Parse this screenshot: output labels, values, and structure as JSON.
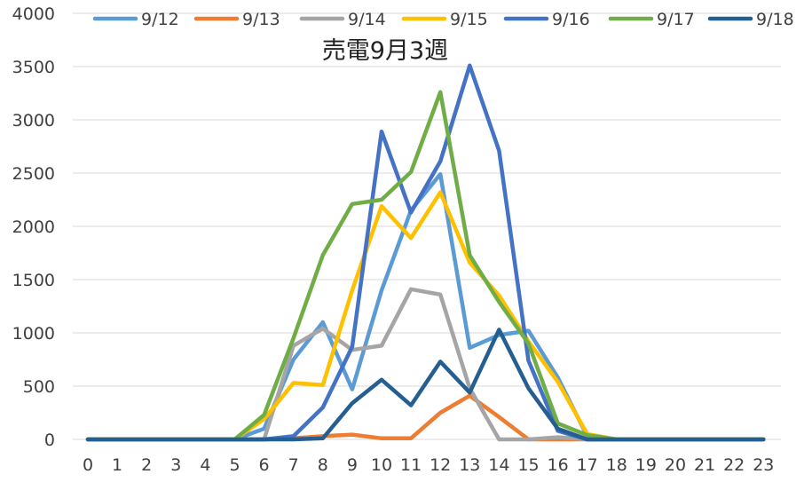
{
  "chart_data": {
    "type": "line",
    "title": "売電9月3週",
    "xlabel": "",
    "ylabel": "",
    "x": [
      0,
      1,
      2,
      3,
      4,
      5,
      6,
      7,
      8,
      9,
      10,
      11,
      12,
      13,
      14,
      15,
      16,
      17,
      18,
      19,
      20,
      21,
      22,
      23
    ],
    "x_tick_labels": [
      "0",
      "1",
      "2",
      "3",
      "4",
      "5",
      "6",
      "7",
      "8",
      "9",
      "10",
      "11",
      "12",
      "13",
      "14",
      "15",
      "16",
      "17",
      "18",
      "19",
      "20",
      "21",
      "22",
      "23"
    ],
    "ylim": [
      0,
      4000
    ],
    "y_ticks": [
      0,
      500,
      1000,
      1500,
      2000,
      2500,
      3000,
      3500,
      4000
    ],
    "y_tick_labels": [
      "0",
      "500",
      "1000",
      "1500",
      "2000",
      "2500",
      "3000",
      "3500",
      "4000"
    ],
    "grid": "horizontal",
    "legend_position": "top",
    "series": [
      {
        "name": "9/12",
        "color": "#5B9BD5",
        "values": [
          0,
          0,
          0,
          0,
          0,
          0,
          100,
          750,
          1100,
          470,
          1400,
          2150,
          2490,
          860,
          980,
          1020,
          580,
          30,
          0,
          0,
          0,
          0,
          0,
          0
        ]
      },
      {
        "name": "9/13",
        "color": "#ED7D31",
        "values": [
          0,
          0,
          0,
          0,
          0,
          0,
          0,
          10,
          30,
          45,
          10,
          10,
          250,
          410,
          210,
          0,
          0,
          0,
          0,
          0,
          0,
          0,
          0,
          0
        ]
      },
      {
        "name": "9/14",
        "color": "#A5A5A5",
        "values": [
          0,
          0,
          0,
          0,
          0,
          0,
          0,
          880,
          1040,
          840,
          880,
          1410,
          1360,
          480,
          0,
          0,
          20,
          0,
          0,
          0,
          0,
          0,
          0,
          0
        ]
      },
      {
        "name": "9/15",
        "color": "#FFC000",
        "values": [
          0,
          0,
          0,
          0,
          0,
          0,
          190,
          530,
          510,
          1400,
          2190,
          1890,
          2320,
          1660,
          1350,
          920,
          540,
          50,
          0,
          0,
          0,
          0,
          0,
          0
        ]
      },
      {
        "name": "9/16",
        "color": "#4472C4",
        "values": [
          0,
          0,
          0,
          0,
          0,
          0,
          0,
          30,
          300,
          870,
          2890,
          2130,
          2610,
          3510,
          2710,
          740,
          80,
          0,
          0,
          0,
          0,
          0,
          0,
          0
        ]
      },
      {
        "name": "9/17",
        "color": "#70AD47",
        "values": [
          0,
          0,
          0,
          0,
          0,
          0,
          230,
          950,
          1730,
          2210,
          2250,
          2510,
          3260,
          1730,
          1290,
          900,
          150,
          40,
          0,
          0,
          0,
          0,
          0,
          0
        ]
      },
      {
        "name": "9/18",
        "color": "#255E91",
        "values": [
          0,
          0,
          0,
          0,
          0,
          0,
          0,
          0,
          10,
          340,
          560,
          320,
          730,
          440,
          1030,
          480,
          100,
          0,
          0,
          0,
          0,
          0,
          0,
          0
        ]
      }
    ]
  }
}
